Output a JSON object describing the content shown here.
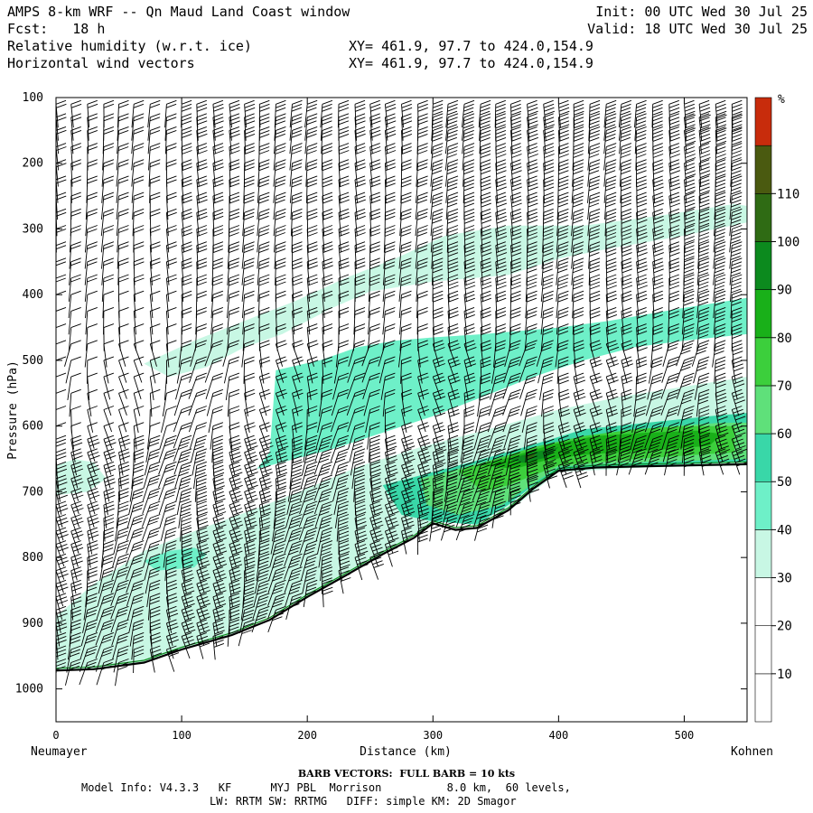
{
  "header": {
    "line1_left": "AMPS 8-km WRF -- Qn Maud Land Coast window",
    "line1_right": "Init: 00 UTC Wed 30 Jul 25",
    "line2_left": "Fcst:   18 h",
    "line2_right": "Valid: 18 UTC Wed 30 Jul 25",
    "line3_left": "Relative humidity (w.r.t. ice)",
    "line3_right": "XY= 461.9, 97.7 to 424.0,154.9",
    "line4_left": "Horizontal wind vectors",
    "line4_right": "XY= 461.9, 97.7 to 424.0,154.9"
  },
  "footer": {
    "barb_note": "BARB VECTORS:  FULL BARB = 10 kts",
    "model_info": "Model Info: V4.3.3   KF      MYJ PBL  Morrison          8.0 km,  60 levels,",
    "physics": "LW: RRTM SW: RRTMG   DIFF: simple KM: 2D Smagor"
  },
  "chart_data": {
    "type": "contour cross-section with wind barbs",
    "ylabel": "Pressure (hPa)",
    "xlabel": "Distance (km)",
    "x_left_label": "Neumayer",
    "x_right_label": "Kohnen",
    "xlim": [
      0,
      550
    ],
    "ylim": [
      1050,
      100
    ],
    "x_ticks": [
      0,
      100,
      200,
      300,
      400,
      500
    ],
    "y_ticks": [
      100,
      200,
      300,
      400,
      500,
      600,
      700,
      800,
      900,
      1000
    ],
    "colorbar": {
      "unit": "%",
      "tick_labels": [
        10,
        20,
        30,
        40,
        50,
        60,
        70,
        80,
        90,
        100,
        110
      ],
      "levels": [
        0,
        10,
        20,
        30,
        40,
        50,
        60,
        70,
        80,
        90,
        100,
        110,
        120
      ],
      "colors": [
        "#ffffff",
        "#ffffff",
        "#ffffff",
        "#c8f7e4",
        "#6ef0c8",
        "#39d7a8",
        "#5fe07a",
        "#3ccf3c",
        "#19b019",
        "#0c8a1e",
        "#2f6b14",
        "#4a5a10",
        "#c82c0c"
      ]
    },
    "terrain_surface_hPa": [
      [
        0,
        972
      ],
      [
        30,
        970
      ],
      [
        70,
        960
      ],
      [
        100,
        940
      ],
      [
        140,
        918
      ],
      [
        170,
        895
      ],
      [
        200,
        860
      ],
      [
        230,
        828
      ],
      [
        260,
        795
      ],
      [
        285,
        770
      ],
      [
        300,
        748
      ],
      [
        318,
        758
      ],
      [
        335,
        755
      ],
      [
        360,
        728
      ],
      [
        380,
        695
      ],
      [
        400,
        668
      ],
      [
        430,
        663
      ],
      [
        470,
        661
      ],
      [
        550,
        658
      ]
    ],
    "rh_regions": [
      {
        "level": 30,
        "points": [
          [
            0,
            890
          ],
          [
            30,
            840
          ],
          [
            70,
            790
          ],
          [
            110,
            760
          ],
          [
            160,
            725
          ],
          [
            200,
            695
          ],
          [
            240,
            662
          ],
          [
            290,
            632
          ],
          [
            350,
            602
          ],
          [
            400,
            575
          ],
          [
            450,
            555
          ],
          [
            500,
            540
          ],
          [
            550,
            525
          ],
          [
            550,
            660
          ],
          [
            470,
            663
          ],
          [
            400,
            670
          ],
          [
            360,
            730
          ],
          [
            300,
            750
          ],
          [
            260,
            795
          ],
          [
            200,
            860
          ],
          [
            140,
            918
          ],
          [
            100,
            940
          ],
          [
            70,
            960
          ],
          [
            30,
            970
          ],
          [
            0,
            972
          ]
        ]
      },
      {
        "level": 30,
        "points": [
          [
            70,
            505
          ],
          [
            110,
            470
          ],
          [
            150,
            440
          ],
          [
            190,
            410
          ],
          [
            230,
            375
          ],
          [
            270,
            345
          ],
          [
            310,
            310
          ],
          [
            360,
            295
          ],
          [
            420,
            295
          ],
          [
            480,
            280
          ],
          [
            540,
            262
          ],
          [
            550,
            265
          ],
          [
            550,
            290
          ],
          [
            500,
            310
          ],
          [
            440,
            330
          ],
          [
            400,
            345
          ],
          [
            360,
            370
          ],
          [
            300,
            380
          ],
          [
            250,
            395
          ],
          [
            220,
            420
          ],
          [
            200,
            440
          ],
          [
            180,
            460
          ],
          [
            150,
            480
          ],
          [
            120,
            510
          ],
          [
            90,
            525
          ]
        ]
      },
      {
        "level": 30,
        "points": [
          [
            0,
            660
          ],
          [
            15,
            650
          ],
          [
            30,
            655
          ],
          [
            40,
            680
          ],
          [
            25,
            700
          ],
          [
            0,
            705
          ]
        ]
      },
      {
        "level": 40,
        "points": [
          [
            175,
            515
          ],
          [
            210,
            500
          ],
          [
            240,
            480
          ],
          [
            270,
            470
          ],
          [
            300,
            465
          ],
          [
            340,
            460
          ],
          [
            370,
            455
          ],
          [
            400,
            450
          ],
          [
            440,
            440
          ],
          [
            470,
            430
          ],
          [
            500,
            420
          ],
          [
            550,
            405
          ],
          [
            550,
            460
          ],
          [
            500,
            470
          ],
          [
            460,
            480
          ],
          [
            420,
            500
          ],
          [
            380,
            525
          ],
          [
            340,
            555
          ],
          [
            300,
            585
          ],
          [
            260,
            610
          ],
          [
            220,
            635
          ],
          [
            180,
            655
          ],
          [
            160,
            665
          ],
          [
            170,
            640
          ]
        ]
      },
      {
        "level": 40,
        "points": [
          [
            70,
            805
          ],
          [
            90,
            790
          ],
          [
            110,
            785
          ],
          [
            120,
            795
          ],
          [
            110,
            815
          ],
          [
            80,
            820
          ]
        ]
      },
      {
        "level": 40,
        "points": [
          [
            330,
            485
          ],
          [
            350,
            470
          ],
          [
            380,
            462
          ],
          [
            410,
            470
          ],
          [
            420,
            490
          ],
          [
            400,
            505
          ],
          [
            370,
            510
          ],
          [
            345,
            505
          ]
        ]
      },
      {
        "level": 50,
        "points": [
          [
            260,
            690
          ],
          [
            300,
            670
          ],
          [
            340,
            650
          ],
          [
            380,
            628
          ],
          [
            420,
            605
          ],
          [
            470,
            595
          ],
          [
            520,
            585
          ],
          [
            550,
            580
          ],
          [
            550,
            655
          ],
          [
            470,
            660
          ],
          [
            430,
            662
          ],
          [
            400,
            668
          ],
          [
            380,
            690
          ],
          [
            360,
            720
          ],
          [
            335,
            750
          ],
          [
            300,
            745
          ],
          [
            275,
            735
          ]
        ]
      },
      {
        "level": 60,
        "points": [
          [
            290,
            680
          ],
          [
            330,
            660
          ],
          [
            370,
            640
          ],
          [
            410,
            620
          ],
          [
            450,
            608
          ],
          [
            490,
            600
          ],
          [
            530,
            595
          ],
          [
            550,
            595
          ],
          [
            550,
            650
          ],
          [
            470,
            655
          ],
          [
            430,
            658
          ],
          [
            400,
            662
          ],
          [
            378,
            690
          ],
          [
            355,
            720
          ],
          [
            320,
            735
          ],
          [
            295,
            720
          ]
        ]
      },
      {
        "level": 70,
        "points": [
          [
            320,
            668
          ],
          [
            350,
            650
          ],
          [
            380,
            632
          ],
          [
            420,
            615
          ],
          [
            460,
            605
          ],
          [
            500,
            600
          ],
          [
            540,
            600
          ],
          [
            540,
            640
          ],
          [
            500,
            645
          ],
          [
            460,
            650
          ],
          [
            430,
            655
          ],
          [
            400,
            660
          ],
          [
            380,
            675
          ],
          [
            360,
            690
          ],
          [
            340,
            700
          ]
        ]
      },
      {
        "level": 80,
        "points": [
          [
            340,
            660
          ],
          [
            365,
            645
          ],
          [
            395,
            628
          ],
          [
            430,
            615
          ],
          [
            470,
            610
          ],
          [
            510,
            607
          ],
          [
            530,
            612
          ],
          [
            520,
            630
          ],
          [
            480,
            636
          ],
          [
            445,
            640
          ],
          [
            415,
            645
          ],
          [
            390,
            652
          ],
          [
            365,
            665
          ]
        ]
      },
      {
        "level": 90,
        "points": [
          [
            360,
            650
          ],
          [
            380,
            640
          ],
          [
            400,
            632
          ],
          [
            390,
            648
          ],
          [
            372,
            656
          ]
        ]
      },
      {
        "level": 100,
        "points": [
          [
            372,
            646
          ],
          [
            382,
            642
          ],
          [
            378,
            650
          ]
        ]
      }
    ],
    "wind_barb_columns_km": [
      0,
      12,
      25,
      38,
      50,
      62,
      75,
      88,
      100,
      112,
      125,
      138,
      150,
      162,
      175,
      188,
      200,
      212,
      225,
      238,
      250,
      262,
      275,
      288,
      300,
      312,
      325,
      338,
      350,
      362,
      375,
      388,
      400,
      412,
      425,
      438,
      450,
      462,
      475,
      488,
      500,
      512,
      525,
      538
    ],
    "wind_barb_levels_hPa": [
      110,
      130,
      150,
      175,
      200,
      225,
      250,
      275,
      300,
      325,
      350,
      375,
      400,
      425,
      450,
      475,
      500,
      525,
      550,
      575,
      600,
      620,
      640,
      660,
      680,
      700,
      720,
      740,
      760,
      780,
      800,
      820,
      840,
      860,
      880,
      900,
      920,
      940,
      960
    ]
  }
}
